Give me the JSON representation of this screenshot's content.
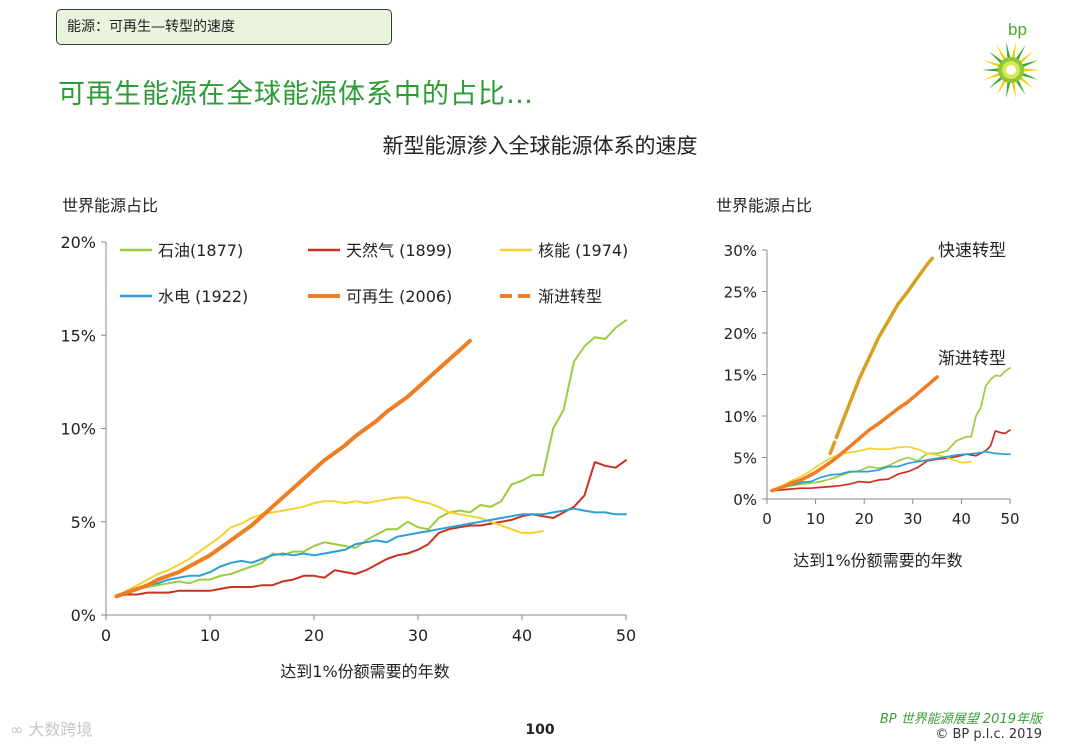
{
  "header": {
    "section_tag": "能源：可再生—转型的速度",
    "title": "可再生能源在全球能源体系中的占比…",
    "logo_text": "bp"
  },
  "chart_title": "新型能源渗入全球能源体系的速度",
  "footer": {
    "brand": "BP 世界能源展望 2019年版",
    "copyright": "© BP p.l.c. 2019",
    "page_number": "100",
    "watermark": "大数跨境"
  },
  "colors": {
    "oil": "#9ccc3c",
    "gas": "#c8321e",
    "nuclear": "#f2d22e",
    "hydro": "#2a9fd8",
    "renewables": "#ee7d24",
    "fast": "#d8a020",
    "title_green": "#2d9c35"
  },
  "chart_data": [
    {
      "type": "line",
      "ylabel": "世界能源占比",
      "xlabel": "达到1%份额需要的年数",
      "xlim": [
        0,
        50
      ],
      "ylim": [
        0,
        20
      ],
      "xticks": [
        "0",
        "10",
        "20",
        "30",
        "40",
        "50"
      ],
      "yticks": [
        "0%",
        "5%",
        "10%",
        "15%",
        "20%"
      ],
      "legend": [
        "石油(1877)",
        "天然气 (1899)",
        "核能 (1974)",
        "水电 (1922)",
        "可再生 (2006)",
        "渐进转型"
      ],
      "series": [
        {
          "name": "石油(1877)",
          "key": "oil",
          "x": [
            1,
            2,
            3,
            4,
            5,
            6,
            7,
            8,
            9,
            10,
            11,
            12,
            13,
            14,
            15,
            16,
            17,
            18,
            19,
            20,
            21,
            22,
            23,
            24,
            25,
            26,
            27,
            28,
            29,
            30,
            31,
            32,
            33,
            34,
            35,
            36,
            37,
            38,
            39,
            40,
            41,
            42,
            43,
            44,
            45,
            46,
            47,
            48,
            49,
            50
          ],
          "y": [
            1.0,
            1.2,
            1.4,
            1.5,
            1.6,
            1.7,
            1.8,
            1.7,
            1.9,
            1.9,
            2.1,
            2.2,
            2.4,
            2.6,
            2.8,
            3.3,
            3.2,
            3.4,
            3.4,
            3.7,
            3.9,
            3.8,
            3.7,
            3.6,
            4.0,
            4.3,
            4.6,
            4.6,
            5.0,
            4.7,
            4.6,
            5.2,
            5.5,
            5.6,
            5.5,
            5.9,
            5.8,
            6.1,
            7.0,
            7.2,
            7.5,
            7.5,
            10.0,
            11.0,
            13.6,
            14.4,
            14.9,
            14.8,
            15.4,
            15.8
          ]
        },
        {
          "name": "天然气 (1899)",
          "key": "gas",
          "x": [
            1,
            2,
            3,
            4,
            5,
            6,
            7,
            8,
            9,
            10,
            11,
            12,
            13,
            14,
            15,
            16,
            17,
            18,
            19,
            20,
            21,
            22,
            23,
            24,
            25,
            26,
            27,
            28,
            29,
            30,
            31,
            32,
            33,
            34,
            35,
            36,
            37,
            38,
            39,
            40,
            41,
            42,
            43,
            44,
            45,
            46,
            47,
            48,
            49,
            50
          ],
          "y": [
            1.0,
            1.1,
            1.1,
            1.2,
            1.2,
            1.2,
            1.3,
            1.3,
            1.3,
            1.3,
            1.4,
            1.5,
            1.5,
            1.5,
            1.6,
            1.6,
            1.8,
            1.9,
            2.1,
            2.1,
            2.0,
            2.4,
            2.3,
            2.2,
            2.4,
            2.7,
            3.0,
            3.2,
            3.3,
            3.5,
            3.8,
            4.4,
            4.6,
            4.7,
            4.8,
            4.8,
            4.9,
            5.0,
            5.1,
            5.3,
            5.4,
            5.3,
            5.2,
            5.5,
            5.8,
            6.4,
            8.2,
            8.0,
            7.9,
            8.3
          ]
        },
        {
          "name": "核能 (1974)",
          "key": "nuclear",
          "x": [
            1,
            2,
            3,
            4,
            5,
            6,
            7,
            8,
            9,
            10,
            11,
            12,
            13,
            14,
            15,
            16,
            17,
            18,
            19,
            20,
            21,
            22,
            23,
            24,
            25,
            26,
            27,
            28,
            29,
            30,
            31,
            32,
            33,
            34,
            35,
            36,
            37,
            38,
            39,
            40,
            41,
            42
          ],
          "y": [
            1.0,
            1.3,
            1.6,
            1.9,
            2.2,
            2.4,
            2.7,
            3.0,
            3.4,
            3.8,
            4.2,
            4.7,
            4.9,
            5.2,
            5.4,
            5.5,
            5.6,
            5.7,
            5.8,
            6.0,
            6.1,
            6.1,
            6.0,
            6.1,
            6.0,
            6.1,
            6.2,
            6.3,
            6.3,
            6.1,
            6.0,
            5.8,
            5.5,
            5.4,
            5.3,
            5.2,
            5.0,
            4.8,
            4.6,
            4.4,
            4.4,
            4.5
          ]
        },
        {
          "name": "水电 (1922)",
          "key": "hydro",
          "x": [
            1,
            2,
            3,
            4,
            5,
            6,
            7,
            8,
            9,
            10,
            11,
            12,
            13,
            14,
            15,
            16,
            17,
            18,
            19,
            20,
            21,
            22,
            23,
            24,
            25,
            26,
            27,
            28,
            29,
            30,
            31,
            32,
            33,
            34,
            35,
            36,
            37,
            38,
            39,
            40,
            41,
            42,
            43,
            44,
            45,
            46,
            47,
            48,
            49,
            50
          ],
          "y": [
            1.0,
            1.2,
            1.4,
            1.6,
            1.7,
            1.9,
            2.0,
            2.1,
            2.1,
            2.3,
            2.6,
            2.8,
            2.9,
            2.8,
            3.0,
            3.2,
            3.3,
            3.2,
            3.3,
            3.2,
            3.3,
            3.4,
            3.5,
            3.8,
            3.9,
            4.0,
            3.9,
            4.2,
            4.3,
            4.4,
            4.5,
            4.6,
            4.7,
            4.8,
            4.9,
            5.0,
            5.1,
            5.2,
            5.3,
            5.4,
            5.4,
            5.4,
            5.5,
            5.6,
            5.7,
            5.6,
            5.5,
            5.5,
            5.4,
            5.4
          ]
        },
        {
          "name": "可再生 (2006)",
          "key": "renewables",
          "x": [
            1,
            2,
            3,
            4,
            5,
            6,
            7,
            8,
            9,
            10,
            11,
            12,
            13,
            14,
            15,
            16,
            17,
            18,
            19,
            20,
            21,
            22,
            23,
            24,
            25,
            26,
            27,
            28,
            29,
            30,
            31,
            32,
            33,
            34,
            35
          ],
          "y": [
            1.0,
            1.2,
            1.4,
            1.6,
            1.9,
            2.1,
            2.3,
            2.6,
            2.9,
            3.2,
            3.6,
            4.0,
            4.4,
            4.8,
            5.3,
            5.8,
            6.3,
            6.8,
            7.3,
            7.8,
            8.3,
            8.7,
            9.1,
            9.6,
            10.0,
            10.4,
            10.9,
            11.3,
            11.7,
            12.2,
            12.7,
            13.2,
            13.7,
            14.2,
            14.7
          ]
        }
      ]
    },
    {
      "type": "line",
      "ylabel": "世界能源占比",
      "xlabel": "达到1%份额需要的年数",
      "xlim": [
        0,
        50
      ],
      "ylim": [
        0,
        30
      ],
      "xticks": [
        "0",
        "10",
        "20",
        "30",
        "40",
        "50"
      ],
      "yticks": [
        "0%",
        "5%",
        "10%",
        "15%",
        "20%",
        "25%",
        "30%"
      ],
      "annotations": [
        "快速转型",
        "渐进转型"
      ],
      "series": [
        {
          "name": "快速转型",
          "key": "fast",
          "x": [
            13,
            15,
            17,
            19,
            21,
            23,
            25,
            27,
            29,
            31,
            33,
            34
          ],
          "y": [
            5.5,
            8.5,
            11.5,
            14.5,
            17.0,
            19.5,
            21.5,
            23.5,
            25.0,
            26.7,
            28.3,
            29.0
          ]
        },
        {
          "name": "渐进转型",
          "key": "renewables",
          "x": [
            13,
            15,
            17,
            19,
            21,
            23,
            25,
            27,
            29,
            31,
            33,
            35
          ],
          "y": [
            4.4,
            5.3,
            6.3,
            7.3,
            8.3,
            9.1,
            10.0,
            10.9,
            11.7,
            12.7,
            13.7,
            14.7
          ]
        },
        {
          "name": "可再生 (2006)",
          "key": "renewables",
          "x": [
            1,
            2,
            3,
            4,
            5,
            6,
            7,
            8,
            9,
            10,
            11,
            12,
            13
          ],
          "y": [
            1.0,
            1.2,
            1.4,
            1.6,
            1.9,
            2.1,
            2.3,
            2.6,
            2.9,
            3.2,
            3.6,
            4.0,
            4.4
          ]
        },
        {
          "name": "石油(1877)",
          "key": "oil",
          "x": [
            1,
            3,
            5,
            7,
            9,
            11,
            13,
            15,
            17,
            19,
            21,
            23,
            25,
            27,
            29,
            31,
            33,
            35,
            37,
            39,
            41,
            42,
            43,
            44,
            45,
            46,
            47,
            48,
            49,
            50
          ],
          "y": [
            1.0,
            1.4,
            1.6,
            1.8,
            1.9,
            2.1,
            2.4,
            2.8,
            3.2,
            3.4,
            3.9,
            3.7,
            4.0,
            4.6,
            5.0,
            4.6,
            5.5,
            5.5,
            5.8,
            7.0,
            7.5,
            7.5,
            10.0,
            11.0,
            13.6,
            14.4,
            14.9,
            14.8,
            15.4,
            15.8
          ]
        },
        {
          "name": "天然气 (1899)",
          "key": "gas",
          "x": [
            1,
            3,
            5,
            7,
            9,
            11,
            13,
            15,
            17,
            19,
            21,
            23,
            25,
            27,
            29,
            31,
            33,
            35,
            37,
            39,
            41,
            43,
            45,
            46,
            47,
            48,
            49,
            50
          ],
          "y": [
            1.0,
            1.1,
            1.2,
            1.3,
            1.3,
            1.4,
            1.5,
            1.6,
            1.8,
            2.1,
            2.0,
            2.3,
            2.4,
            3.0,
            3.3,
            3.8,
            4.6,
            4.8,
            4.9,
            5.1,
            5.4,
            5.2,
            5.8,
            6.4,
            8.2,
            8.0,
            7.9,
            8.3
          ]
        },
        {
          "name": "核能 (1974)",
          "key": "nuclear",
          "x": [
            1,
            3,
            5,
            7,
            9,
            11,
            13,
            15,
            17,
            19,
            21,
            23,
            25,
            27,
            29,
            31,
            33,
            35,
            37,
            39,
            40,
            41,
            42
          ],
          "y": [
            1.0,
            1.6,
            2.2,
            2.7,
            3.4,
            4.2,
            4.9,
            5.4,
            5.6,
            5.8,
            6.1,
            6.0,
            6.0,
            6.2,
            6.3,
            6.0,
            5.5,
            5.3,
            5.0,
            4.6,
            4.4,
            4.4,
            4.5
          ]
        },
        {
          "name": "水电 (1922)",
          "key": "hydro",
          "x": [
            1,
            3,
            5,
            7,
            9,
            11,
            13,
            15,
            17,
            19,
            21,
            23,
            25,
            27,
            29,
            31,
            33,
            35,
            37,
            39,
            41,
            43,
            45,
            47,
            49,
            50
          ],
          "y": [
            1.0,
            1.4,
            1.7,
            2.0,
            2.1,
            2.6,
            2.9,
            3.0,
            3.3,
            3.3,
            3.3,
            3.5,
            3.9,
            3.9,
            4.3,
            4.5,
            4.7,
            4.9,
            5.1,
            5.3,
            5.4,
            5.5,
            5.7,
            5.5,
            5.4,
            5.4
          ]
        }
      ]
    }
  ]
}
